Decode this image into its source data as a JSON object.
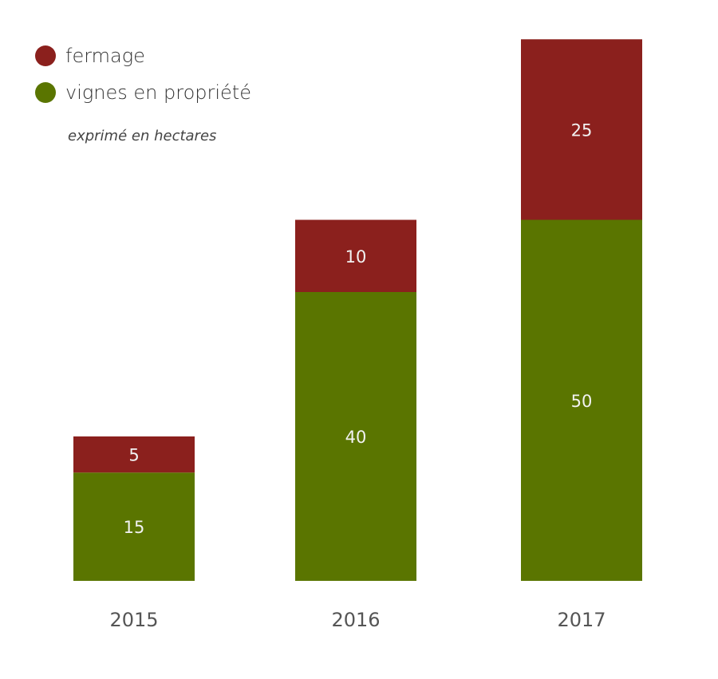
{
  "colors": {
    "fermage": "#8b201d",
    "vignes": "#5a7500",
    "label": "#f2f2f2",
    "tick": "#555555"
  },
  "legend": {
    "items": [
      {
        "label": "fermage",
        "color": "#8b201d"
      },
      {
        "label": "vignes en propriété",
        "color": "#5a7500"
      }
    ]
  },
  "unit_note": "exprimé en hectares",
  "chart_data": {
    "type": "bar",
    "stacked": true,
    "categories": [
      "2015",
      "2016",
      "2017"
    ],
    "series": [
      {
        "name": "vignes en propriété",
        "values": [
          15,
          40,
          50
        ]
      },
      {
        "name": "fermage",
        "values": [
          5,
          10,
          25
        ]
      }
    ],
    "ylim": [
      0,
      75
    ],
    "grid": false,
    "legend_position": "top-left"
  }
}
